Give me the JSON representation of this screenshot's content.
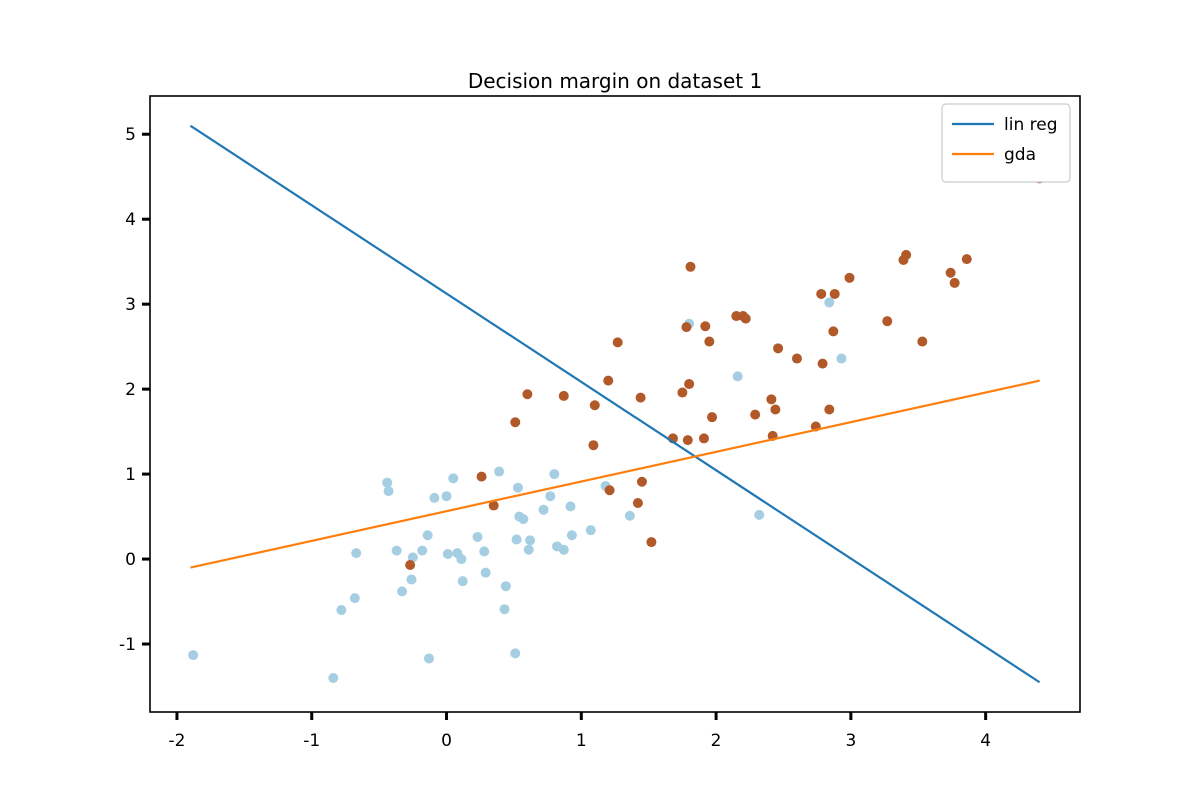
{
  "chart_data": {
    "type": "scatter",
    "title": "Decision margin on dataset 1",
    "xlabel": "",
    "ylabel": "",
    "xlim": [
      -2.2,
      4.7
    ],
    "ylim": [
      -1.8,
      5.45
    ],
    "xticks": [
      -2,
      -1,
      0,
      1,
      2,
      3,
      4
    ],
    "yticks": [
      -1,
      0,
      1,
      2,
      3,
      4,
      5
    ],
    "grid": false,
    "legend": "top-right",
    "series": [
      {
        "name": "lin reg",
        "kind": "line",
        "color": "#1f77b4",
        "x": [
          -1.9,
          4.4
        ],
        "y": [
          5.1,
          -1.45
        ]
      },
      {
        "name": "gda",
        "kind": "line",
        "color": "#ff7f0e",
        "x": [
          -1.9,
          4.4
        ],
        "y": [
          -0.1,
          2.1
        ]
      },
      {
        "kind": "scatter",
        "color": "#a6cee3",
        "x": [
          -1.88,
          -0.84,
          -0.78,
          -0.68,
          -0.67,
          -0.44,
          -0.43,
          -0.37,
          -0.33,
          -0.26,
          -0.25,
          -0.18,
          -0.14,
          -0.13,
          -0.09,
          0.0,
          0.01,
          0.05,
          0.08,
          0.11,
          0.12,
          0.23,
          0.28,
          0.29,
          0.39,
          0.43,
          0.44,
          0.51,
          0.52,
          0.53,
          0.54,
          0.57,
          0.61,
          0.62,
          0.72,
          0.77,
          0.8,
          0.82,
          0.87,
          0.92,
          0.93,
          1.07,
          1.18,
          1.36,
          1.8,
          2.16,
          2.32,
          2.84,
          2.93
        ],
        "y": [
          -1.13,
          -1.4,
          -0.6,
          -0.46,
          0.07,
          0.9,
          0.8,
          0.1,
          -0.38,
          -0.24,
          0.02,
          0.1,
          0.28,
          -1.17,
          0.72,
          0.74,
          0.06,
          0.95,
          0.07,
          0.0,
          -0.26,
          0.26,
          0.09,
          -0.16,
          1.03,
          -0.59,
          -0.32,
          -1.11,
          0.23,
          0.84,
          0.5,
          0.47,
          0.11,
          0.22,
          0.58,
          0.74,
          1.0,
          0.15,
          0.11,
          0.62,
          0.28,
          0.34,
          0.86,
          0.51,
          2.77,
          2.15,
          0.52,
          3.02,
          2.36
        ]
      },
      {
        "kind": "scatter",
        "color": "#b15928",
        "x": [
          -0.27,
          0.26,
          0.35,
          0.51,
          0.6,
          0.87,
          1.09,
          1.1,
          1.2,
          1.21,
          1.27,
          1.42,
          1.44,
          1.45,
          1.52,
          1.68,
          1.75,
          1.78,
          1.79,
          1.8,
          1.81,
          1.91,
          1.92,
          1.95,
          1.97,
          2.15,
          2.2,
          2.22,
          2.29,
          2.41,
          2.42,
          2.44,
          2.46,
          2.6,
          2.74,
          2.78,
          2.79,
          2.84,
          2.87,
          2.88,
          2.99,
          3.27,
          3.39,
          3.41,
          3.53,
          3.74,
          3.77,
          3.86,
          4.4
        ],
        "y": [
          -0.07,
          0.97,
          0.63,
          1.61,
          1.94,
          1.92,
          1.34,
          1.81,
          2.1,
          0.81,
          2.55,
          0.66,
          1.9,
          0.91,
          0.2,
          1.42,
          1.96,
          2.73,
          1.4,
          2.06,
          3.44,
          1.42,
          2.74,
          2.56,
          1.67,
          2.86,
          2.86,
          2.83,
          1.7,
          1.88,
          1.45,
          1.76,
          2.48,
          2.36,
          1.56,
          3.12,
          2.3,
          1.76,
          2.68,
          3.12,
          3.31,
          2.8,
          3.52,
          3.58,
          2.56,
          3.37,
          3.25,
          3.53,
          4.48
        ]
      }
    ]
  }
}
